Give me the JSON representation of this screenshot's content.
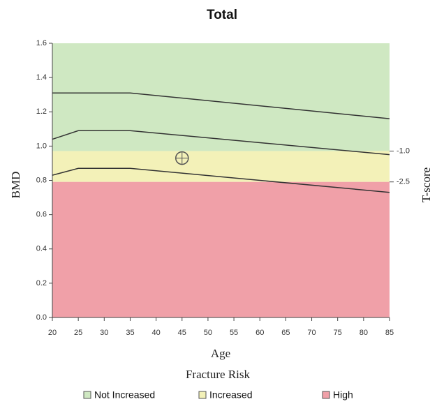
{
  "chart_data": {
    "type": "line",
    "title": "Total",
    "x_label": "Age",
    "y_label": "BMD",
    "y2_label": "T-score",
    "legend_title": "Fracture Risk",
    "xlim": [
      20,
      85
    ],
    "xticks": [
      20,
      25,
      30,
      35,
      40,
      45,
      50,
      55,
      60,
      65,
      70,
      75,
      80,
      85
    ],
    "ylim": [
      0,
      1.6
    ],
    "yticks": [
      {
        "value": 0,
        "label": "0.0"
      },
      0.2,
      0.4,
      0.6,
      0.8,
      {
        "value": 1,
        "label": "1.0"
      },
      1.2,
      1.4,
      1.6
    ],
    "y2lim": [
      -9.1,
      4.25
    ],
    "y2ticks": [
      {
        "value": -1,
        "label": "-1.0"
      },
      {
        "value": -2.5,
        "label": "-2.5"
      }
    ],
    "series": [
      {
        "name": "Not Increased",
        "color": "#cfe8c2",
        "y2_range": [
          -1,
          4.25
        ]
      },
      {
        "name": "Increased",
        "color": "#f3f1b8",
        "y2_range": [
          -2.5,
          -1
        ]
      },
      {
        "name": "High",
        "color": "#f0a0a8",
        "y2_range": [
          -9.1,
          -2.5
        ]
      }
    ],
    "x": [
      20,
      25,
      35,
      85
    ],
    "lines": [
      {
        "color": "#333333",
        "values": [
          1.31,
          1.31,
          1.31,
          1.16
        ]
      },
      {
        "color": "#333333",
        "values": [
          1.04,
          1.09,
          1.09,
          0.95
        ]
      },
      {
        "color": "#333333",
        "values": [
          0.83,
          0.87,
          0.87,
          0.73
        ]
      }
    ],
    "point": {
      "x": 45,
      "value": 0.93,
      "color": "#555555"
    }
  }
}
